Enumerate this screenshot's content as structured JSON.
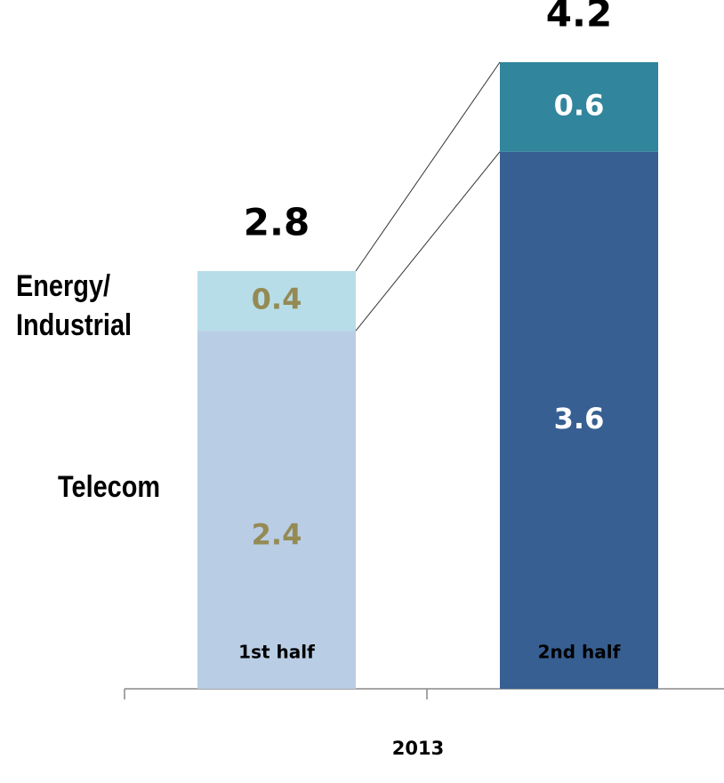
{
  "chart_data": {
    "type": "stacked-bar",
    "categories": [
      "1st half",
      "2nd half"
    ],
    "x_label": "2013",
    "series": [
      {
        "name": "Telecom",
        "colors": [
          "#b9cde5",
          "#375f91"
        ],
        "values": [
          2.4,
          3.6
        ]
      },
      {
        "name": "Energy/ Industrial",
        "colors": [
          "#b7dde8",
          "#31859c"
        ],
        "values": [
          0.4,
          0.6
        ]
      }
    ],
    "label_colors": [
      "#948a54",
      "#ffffff"
    ],
    "totals": [
      2.8,
      4.2
    ]
  }
}
